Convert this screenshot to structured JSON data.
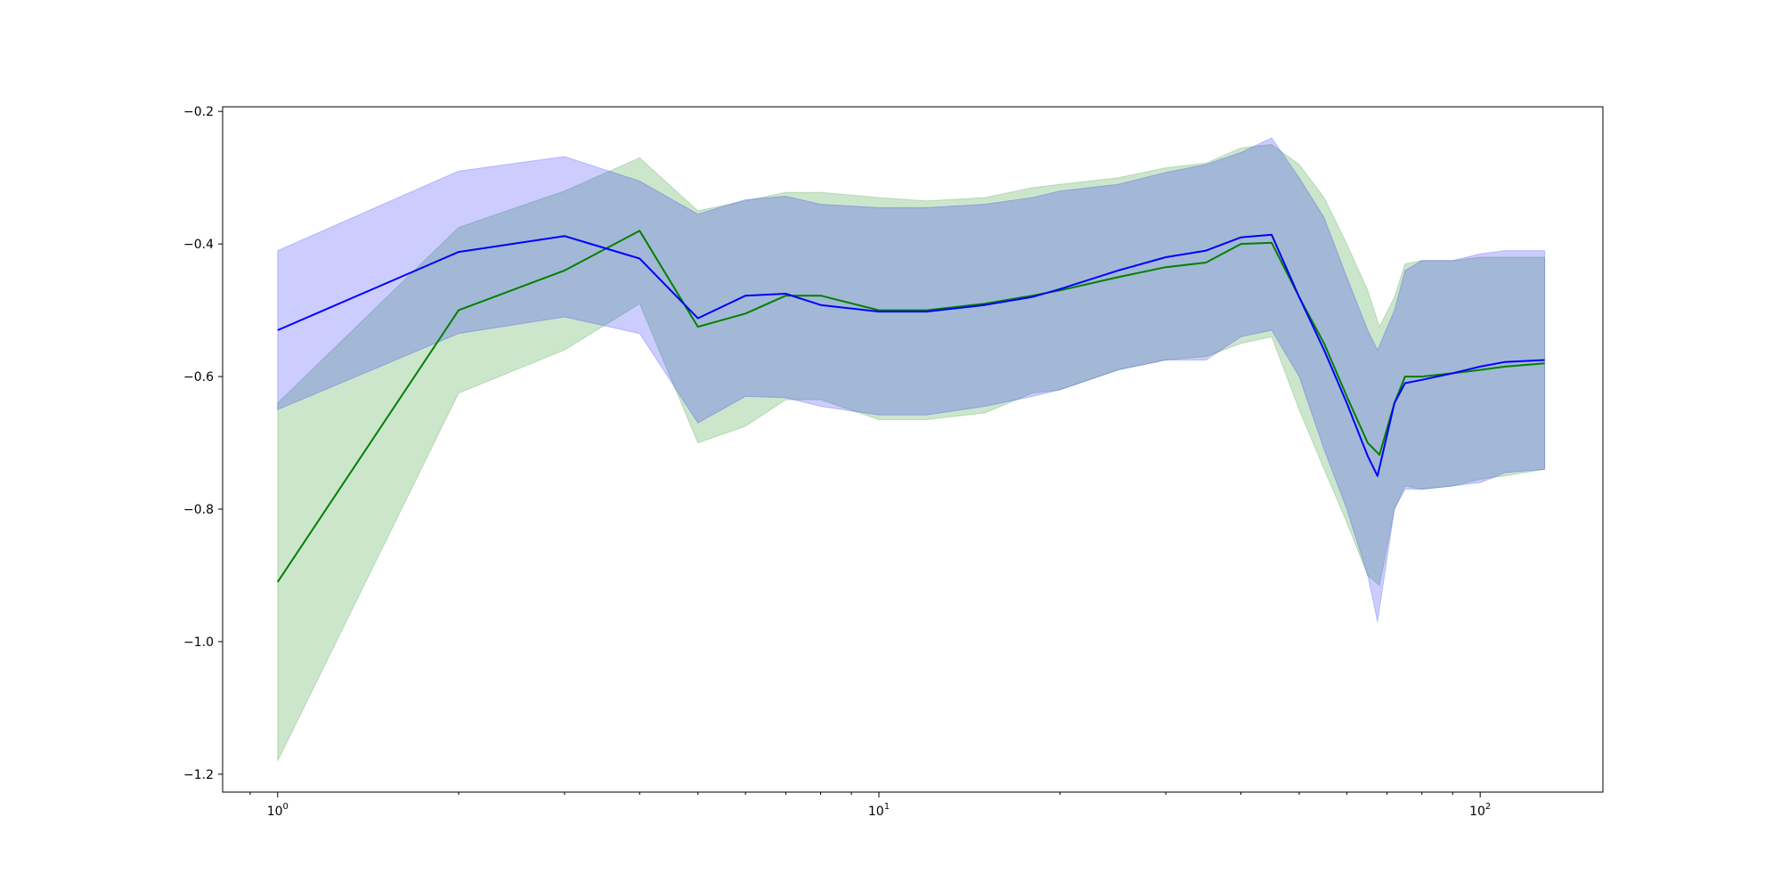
{
  "chart_data": {
    "type": "line",
    "title": "",
    "xlabel": "",
    "ylabel": "",
    "x_scale": "log",
    "xlim": [
      0.81,
      160
    ],
    "ylim": [
      -1.227,
      -0.193
    ],
    "grid": false,
    "legend": "none",
    "x_tick_labels": [
      {
        "value": 1,
        "base": "10",
        "exp": "0"
      },
      {
        "value": 10,
        "base": "10",
        "exp": "1"
      },
      {
        "value": 100,
        "base": "10",
        "exp": "2"
      }
    ],
    "y_ticks": [
      -1.2,
      -1.0,
      -0.8,
      -0.6,
      -0.4,
      -0.2
    ],
    "y_tick_labels": [
      "−1.2",
      "−1.0",
      "−0.8",
      "−0.6",
      "−0.4",
      "−0.2"
    ],
    "series": [
      {
        "color": "#008000",
        "band_color": "#008000",
        "band_opacity": 0.2,
        "points": [
          [
            1,
            -0.91
          ],
          [
            2,
            -0.5
          ],
          [
            3,
            -0.44
          ],
          [
            4,
            -0.38
          ],
          [
            5,
            -0.525
          ],
          [
            6,
            -0.505
          ],
          [
            7,
            -0.478
          ],
          [
            8,
            -0.478
          ],
          [
            10,
            -0.5
          ],
          [
            12,
            -0.5
          ],
          [
            15,
            -0.49
          ],
          [
            18,
            -0.478
          ],
          [
            20,
            -0.47
          ],
          [
            25,
            -0.45
          ],
          [
            30,
            -0.435
          ],
          [
            35,
            -0.428
          ],
          [
            40,
            -0.4
          ],
          [
            45,
            -0.398
          ],
          [
            50,
            -0.48
          ],
          [
            55,
            -0.55
          ],
          [
            60,
            -0.63
          ],
          [
            65,
            -0.7
          ],
          [
            68,
            -0.718
          ],
          [
            72,
            -0.64
          ],
          [
            75,
            -0.6
          ],
          [
            80,
            -0.6
          ],
          [
            90,
            -0.595
          ],
          [
            100,
            -0.59
          ],
          [
            110,
            -0.585
          ],
          [
            128,
            -0.58
          ]
        ],
        "upper": [
          [
            1,
            -0.64
          ],
          [
            2,
            -0.375
          ],
          [
            3,
            -0.32
          ],
          [
            4,
            -0.27
          ],
          [
            5,
            -0.35
          ],
          [
            6,
            -0.335
          ],
          [
            7,
            -0.322
          ],
          [
            8,
            -0.322
          ],
          [
            10,
            -0.33
          ],
          [
            12,
            -0.335
          ],
          [
            15,
            -0.33
          ],
          [
            18,
            -0.315
          ],
          [
            20,
            -0.31
          ],
          [
            25,
            -0.3
          ],
          [
            30,
            -0.285
          ],
          [
            35,
            -0.278
          ],
          [
            40,
            -0.255
          ],
          [
            45,
            -0.25
          ],
          [
            50,
            -0.28
          ],
          [
            55,
            -0.33
          ],
          [
            60,
            -0.4
          ],
          [
            65,
            -0.47
          ],
          [
            68,
            -0.525
          ],
          [
            72,
            -0.48
          ],
          [
            75,
            -0.43
          ],
          [
            80,
            -0.425
          ],
          [
            90,
            -0.425
          ],
          [
            100,
            -0.42
          ],
          [
            110,
            -0.42
          ],
          [
            128,
            -0.42
          ]
        ],
        "lower": [
          [
            1,
            -1.18
          ],
          [
            2,
            -0.625
          ],
          [
            3,
            -0.56
          ],
          [
            4,
            -0.49
          ],
          [
            5,
            -0.7
          ],
          [
            6,
            -0.675
          ],
          [
            7,
            -0.635
          ],
          [
            8,
            -0.635
          ],
          [
            10,
            -0.665
          ],
          [
            12,
            -0.665
          ],
          [
            15,
            -0.655
          ],
          [
            18,
            -0.625
          ],
          [
            20,
            -0.62
          ],
          [
            25,
            -0.59
          ],
          [
            30,
            -0.575
          ],
          [
            35,
            -0.57
          ],
          [
            40,
            -0.55
          ],
          [
            45,
            -0.54
          ],
          [
            50,
            -0.65
          ],
          [
            55,
            -0.74
          ],
          [
            60,
            -0.82
          ],
          [
            65,
            -0.9
          ],
          [
            68,
            -0.915
          ],
          [
            72,
            -0.8
          ],
          [
            75,
            -0.765
          ],
          [
            80,
            -0.77
          ],
          [
            90,
            -0.765
          ],
          [
            100,
            -0.755
          ],
          [
            110,
            -0.75
          ],
          [
            128,
            -0.74
          ]
        ]
      },
      {
        "color": "#0000ff",
        "band_color": "#0000ff",
        "band_opacity": 0.2,
        "points": [
          [
            1,
            -0.53
          ],
          [
            2,
            -0.412
          ],
          [
            3,
            -0.388
          ],
          [
            4,
            -0.422
          ],
          [
            5,
            -0.512
          ],
          [
            6,
            -0.478
          ],
          [
            7,
            -0.475
          ],
          [
            8,
            -0.492
          ],
          [
            10,
            -0.502
          ],
          [
            12,
            -0.502
          ],
          [
            15,
            -0.492
          ],
          [
            18,
            -0.48
          ],
          [
            20,
            -0.468
          ],
          [
            25,
            -0.44
          ],
          [
            30,
            -0.42
          ],
          [
            35,
            -0.41
          ],
          [
            40,
            -0.39
          ],
          [
            45,
            -0.386
          ],
          [
            50,
            -0.48
          ],
          [
            55,
            -0.56
          ],
          [
            60,
            -0.64
          ],
          [
            65,
            -0.72
          ],
          [
            67.5,
            -0.75
          ],
          [
            72,
            -0.64
          ],
          [
            75,
            -0.61
          ],
          [
            80,
            -0.605
          ],
          [
            90,
            -0.595
          ],
          [
            100,
            -0.585
          ],
          [
            110,
            -0.578
          ],
          [
            128,
            -0.575
          ]
        ],
        "upper": [
          [
            1,
            -0.41
          ],
          [
            2,
            -0.29
          ],
          [
            3,
            -0.268
          ],
          [
            4,
            -0.305
          ],
          [
            5,
            -0.355
          ],
          [
            6,
            -0.333
          ],
          [
            7,
            -0.328
          ],
          [
            8,
            -0.34
          ],
          [
            10,
            -0.345
          ],
          [
            12,
            -0.345
          ],
          [
            15,
            -0.34
          ],
          [
            18,
            -0.33
          ],
          [
            20,
            -0.32
          ],
          [
            25,
            -0.31
          ],
          [
            30,
            -0.292
          ],
          [
            35,
            -0.28
          ],
          [
            40,
            -0.262
          ],
          [
            45,
            -0.24
          ],
          [
            50,
            -0.3
          ],
          [
            55,
            -0.36
          ],
          [
            60,
            -0.45
          ],
          [
            65,
            -0.53
          ],
          [
            67.5,
            -0.56
          ],
          [
            72,
            -0.5
          ],
          [
            75,
            -0.44
          ],
          [
            80,
            -0.425
          ],
          [
            90,
            -0.425
          ],
          [
            100,
            -0.415
          ],
          [
            110,
            -0.41
          ],
          [
            128,
            -0.41
          ]
        ],
        "lower": [
          [
            1,
            -0.65
          ],
          [
            2,
            -0.535
          ],
          [
            3,
            -0.51
          ],
          [
            4,
            -0.535
          ],
          [
            5,
            -0.67
          ],
          [
            6,
            -0.63
          ],
          [
            7,
            -0.632
          ],
          [
            8,
            -0.645
          ],
          [
            10,
            -0.658
          ],
          [
            12,
            -0.658
          ],
          [
            15,
            -0.645
          ],
          [
            18,
            -0.63
          ],
          [
            20,
            -0.62
          ],
          [
            25,
            -0.59
          ],
          [
            30,
            -0.575
          ],
          [
            35,
            -0.575
          ],
          [
            40,
            -0.54
          ],
          [
            45,
            -0.53
          ],
          [
            50,
            -0.6
          ],
          [
            55,
            -0.71
          ],
          [
            60,
            -0.8
          ],
          [
            65,
            -0.9
          ],
          [
            67.5,
            -0.97
          ],
          [
            72,
            -0.8
          ],
          [
            75,
            -0.77
          ],
          [
            80,
            -0.77
          ],
          [
            90,
            -0.765
          ],
          [
            100,
            -0.76
          ],
          [
            110,
            -0.745
          ],
          [
            128,
            -0.74
          ]
        ]
      }
    ]
  }
}
